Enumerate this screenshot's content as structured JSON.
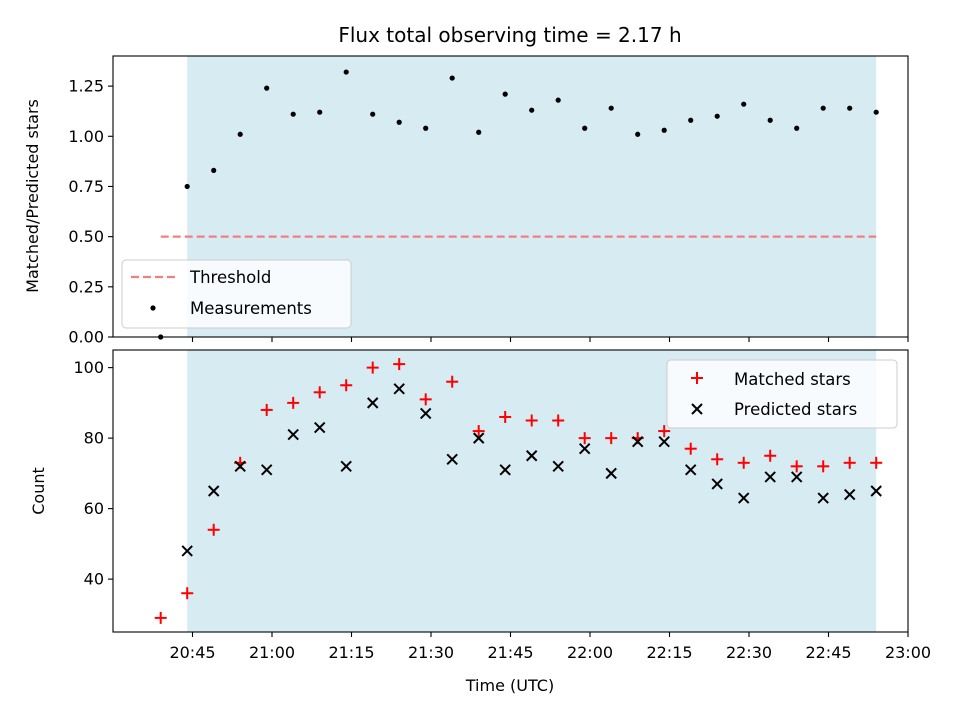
{
  "chart_data": [
    {
      "type": "scatter",
      "title": "Flux total observing time = 2.17 h",
      "xlabel": "",
      "ylabel": "Matched/Predicted stars",
      "ylim": [
        0,
        1.4
      ],
      "yticks": [
        0.0,
        0.25,
        0.5,
        0.75,
        1.0,
        1.25
      ],
      "ytick_labels": [
        "0.00",
        "0.25",
        "0.50",
        "0.75",
        "1.00",
        "1.25"
      ],
      "xlim": [
        "20:30",
        "23:00"
      ],
      "shaded_span": [
        "20:44",
        "22:54"
      ],
      "legend_position": "lower-left",
      "threshold": {
        "name": "Threshold",
        "value": 0.5,
        "x_range": [
          "20:39",
          "22:54"
        ],
        "color": "#f08080"
      },
      "series": [
        {
          "name": "Measurements",
          "color": "#000000",
          "x": [
            "20:39",
            "20:44",
            "20:49",
            "20:54",
            "20:59",
            "21:04",
            "21:09",
            "21:14",
            "21:19",
            "21:24",
            "21:29",
            "21:34",
            "21:39",
            "21:44",
            "21:49",
            "21:54",
            "21:59",
            "22:04",
            "22:09",
            "22:14",
            "22:19",
            "22:24",
            "22:29",
            "22:34",
            "22:39",
            "22:44",
            "22:49",
            "22:54"
          ],
          "y": [
            0.0,
            0.75,
            0.83,
            1.01,
            1.24,
            1.11,
            1.12,
            1.32,
            1.11,
            1.07,
            1.04,
            1.29,
            1.02,
            1.21,
            1.13,
            1.18,
            1.04,
            1.14,
            1.01,
            1.03,
            1.08,
            1.1,
            1.16,
            1.08,
            1.04,
            1.14,
            1.14,
            1.12
          ]
        }
      ]
    },
    {
      "type": "scatter",
      "title": "",
      "xlabel": "Time (UTC)",
      "ylabel": "Count",
      "ylim": [
        25,
        105
      ],
      "yticks": [
        40,
        60,
        80,
        100
      ],
      "ytick_labels": [
        "40",
        "60",
        "80",
        "100"
      ],
      "xlim": [
        "20:30",
        "23:00"
      ],
      "xticks": [
        "20:45",
        "21:00",
        "21:15",
        "21:30",
        "21:45",
        "22:00",
        "22:15",
        "22:30",
        "22:45",
        "23:00"
      ],
      "shaded_span": [
        "20:44",
        "22:54"
      ],
      "legend_position": "upper-right",
      "series": [
        {
          "name": "Matched stars",
          "marker": "plus",
          "color": "#ff0000",
          "x": [
            "20:39",
            "20:44",
            "20:49",
            "20:54",
            "20:59",
            "21:04",
            "21:09",
            "21:14",
            "21:19",
            "21:24",
            "21:29",
            "21:34",
            "21:39",
            "21:44",
            "21:49",
            "21:54",
            "21:59",
            "22:04",
            "22:09",
            "22:14",
            "22:19",
            "22:24",
            "22:29",
            "22:34",
            "22:39",
            "22:44",
            "22:49",
            "22:54"
          ],
          "y": [
            29,
            36,
            54,
            73,
            88,
            90,
            93,
            95,
            100,
            101,
            91,
            96,
            82,
            86,
            85,
            85,
            80,
            80,
            80,
            82,
            77,
            74,
            73,
            75,
            72,
            72,
            73,
            73
          ]
        },
        {
          "name": "Predicted stars",
          "marker": "x",
          "color": "#000000",
          "x": [
            "20:44",
            "20:49",
            "20:54",
            "20:59",
            "21:04",
            "21:09",
            "21:14",
            "21:19",
            "21:24",
            "21:29",
            "21:34",
            "21:39",
            "21:44",
            "21:49",
            "21:54",
            "21:59",
            "22:04",
            "22:09",
            "22:14",
            "22:19",
            "22:24",
            "22:29",
            "22:34",
            "22:39",
            "22:44",
            "22:49",
            "22:54"
          ],
          "y": [
            48,
            65,
            72,
            71,
            81,
            83,
            72,
            90,
            94,
            87,
            74,
            80,
            71,
            75,
            72,
            77,
            70,
            79,
            79,
            71,
            67,
            63,
            69,
            69,
            63,
            64,
            65
          ]
        }
      ]
    }
  ],
  "colors": {
    "shade": "#add8e6",
    "threshold": "#f08080",
    "matched": "#ff0000",
    "predicted": "#000000"
  }
}
